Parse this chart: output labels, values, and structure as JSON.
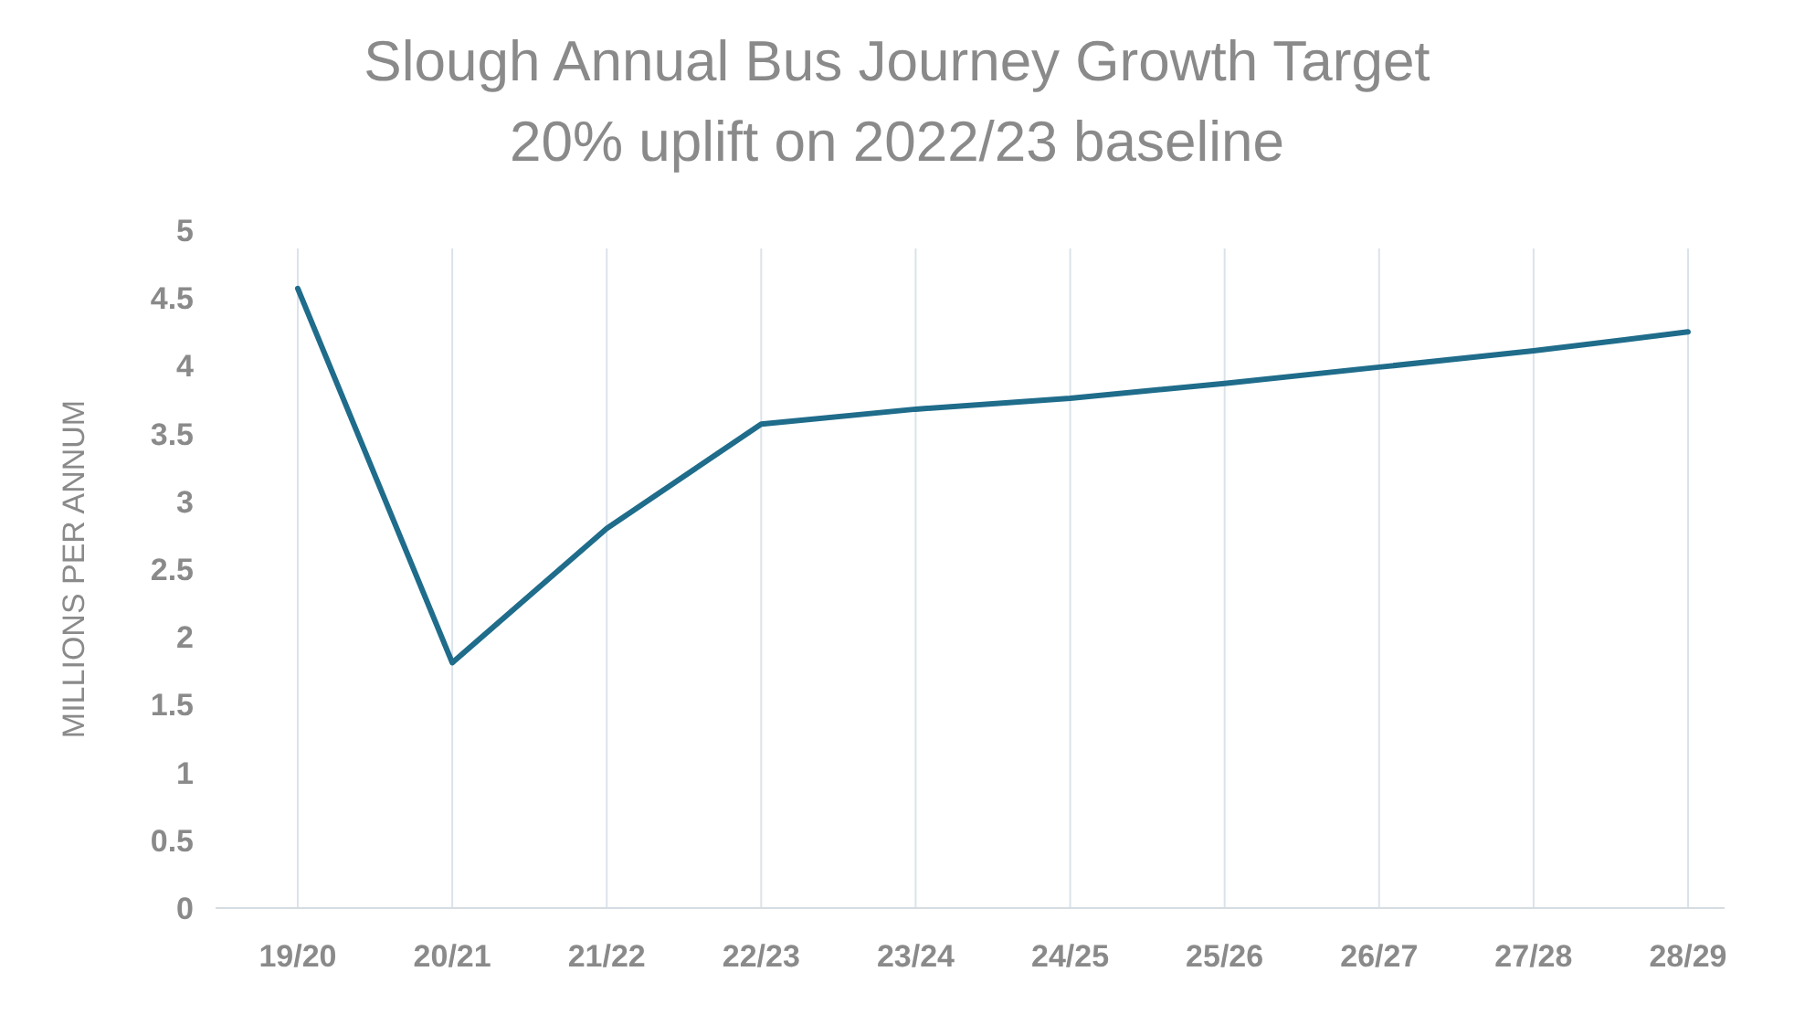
{
  "chart_data": {
    "type": "line",
    "title": "Slough Annual Bus Journey Growth Target",
    "subtitle": "20% uplift on 2022/23 baseline",
    "ylabel": "MILLIONS PER ANNUM",
    "categories": [
      "19/20",
      "20/21",
      "21/22",
      "22/23",
      "23/24",
      "24/25",
      "25/26",
      "26/27",
      "27/28",
      "28/29"
    ],
    "series": [
      {
        "color": "#1f6c8b",
        "values": [
          4.57,
          1.81,
          2.8,
          3.57,
          3.68,
          3.76,
          3.87,
          3.99,
          4.11,
          4.25
        ]
      }
    ],
    "ylim": [
      0,
      5
    ],
    "yticks": [
      0,
      0.5,
      1,
      1.5,
      2,
      2.5,
      3,
      3.5,
      4,
      4.5,
      5
    ],
    "grid": "x",
    "marker": "none",
    "line_style": "solid"
  }
}
